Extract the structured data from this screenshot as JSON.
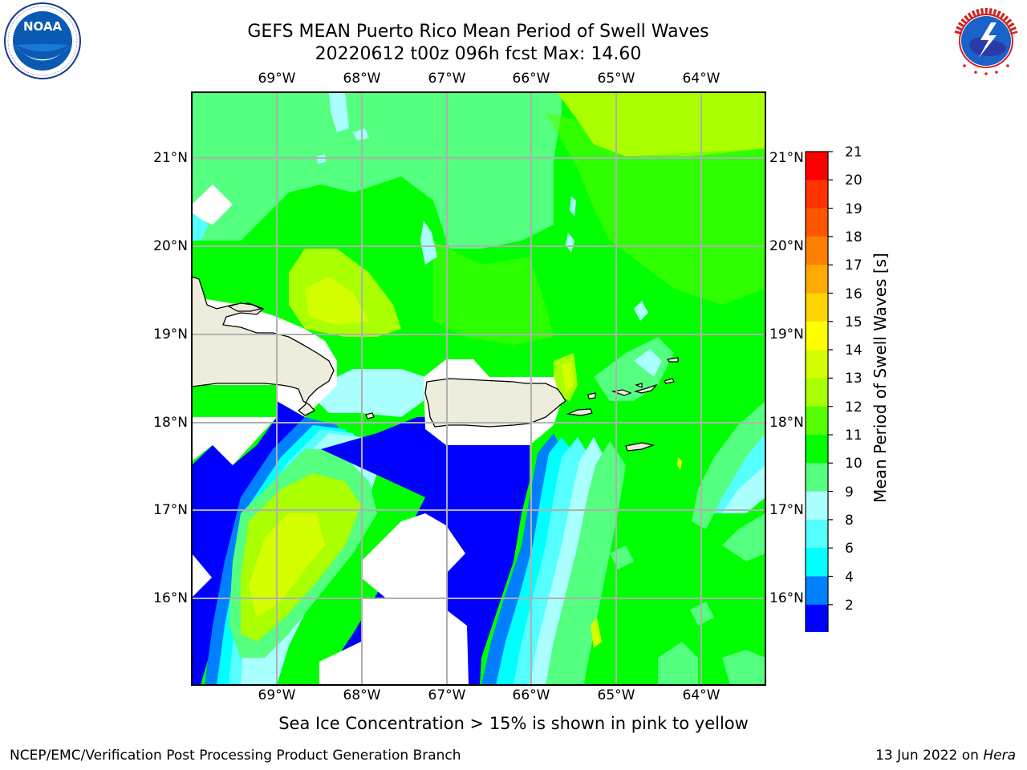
{
  "title": {
    "line1": "GEFS MEAN Puerto Rico Mean Period of Swell Waves",
    "line2": "20220612 t00z 096h fcst   Max: 14.60"
  },
  "logos": {
    "left": {
      "icon": "noaa-logo-icon",
      "text": "NOAA"
    },
    "right": {
      "icon": "nws-logo-icon",
      "text": "NATIONAL WEATHER SERVICE"
    }
  },
  "map": {
    "lon_labels": [
      "69°W",
      "68°W",
      "67°W",
      "66°W",
      "65°W",
      "64°W"
    ],
    "lat_labels": [
      "21°N",
      "20°N",
      "19°N",
      "18°N",
      "17°N",
      "16°N"
    ],
    "region": "Puerto Rico"
  },
  "colorbar": {
    "label": "Mean Period of Swell Waves [s]",
    "ticks": [
      "21",
      "20",
      "19",
      "18",
      "17",
      "16",
      "15",
      "14",
      "13",
      "12",
      "11",
      "10",
      "9",
      "8",
      "6",
      "4",
      "2"
    ],
    "colors": [
      "#ff0000",
      "#ff3300",
      "#ff5500",
      "#ff7f00",
      "#ffaa00",
      "#ffd400",
      "#ffff00",
      "#d4ff00",
      "#aaff00",
      "#55ff00",
      "#00ff00",
      "#55ff7f",
      "#aaffff",
      "#55ffff",
      "#00ffff",
      "#007fff",
      "#0000ff"
    ]
  },
  "footnote": "Sea Ice Concentration > 15% is shown in pink to yellow",
  "footer": {
    "left": "NCEP/EMC/Verification Post Processing Product Generation Branch",
    "right_prefix": "13 Jun 2022 on ",
    "right_machine": "Hera"
  }
}
